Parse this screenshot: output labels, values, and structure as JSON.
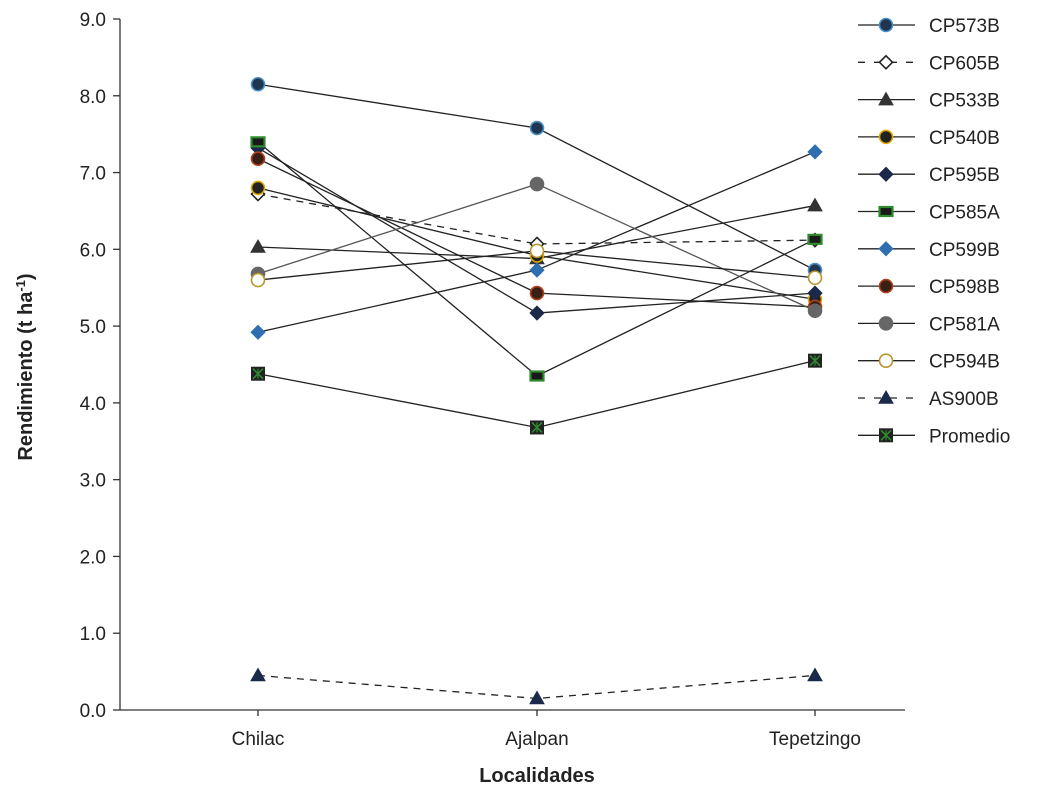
{
  "chart_data": {
    "type": "line",
    "xlabel": "Localidades",
    "ylabel": "Rendimiento (t ha",
    "ylabel_superscript": "-1",
    "ylabel_suffix": ")",
    "categories": [
      "Chilac",
      "Ajalpan",
      "Tepetzingo"
    ],
    "ylim": [
      0,
      9
    ],
    "yticks": [
      "0.0",
      "1.0",
      "2.0",
      "3.0",
      "4.0",
      "5.0",
      "6.0",
      "7.0",
      "8.0",
      "9.0"
    ],
    "grid": false,
    "legend_position": "right",
    "series": [
      {
        "name": "CP573B",
        "values": [
          8.15,
          7.58,
          5.73
        ],
        "marker": "circle",
        "fill": "#1f3550",
        "stroke": "#4a90c8",
        "line": "solid",
        "line_color": "#222222"
      },
      {
        "name": "CP605B",
        "values": [
          6.72,
          6.07,
          6.12
        ],
        "marker": "diamond",
        "fill": "#ffffff",
        "stroke": "#222222",
        "line": "dashed",
        "line_color": "#222222"
      },
      {
        "name": "CP533B",
        "values": [
          6.03,
          5.88,
          6.57
        ],
        "marker": "triangle",
        "fill": "#333333",
        "stroke": "#333333",
        "line": "solid",
        "line_color": "#222222"
      },
      {
        "name": "CP540B",
        "values": [
          6.8,
          5.92,
          5.35
        ],
        "marker": "circle",
        "fill": "#222222",
        "stroke": "#e0a800",
        "line": "solid",
        "line_color": "#222222"
      },
      {
        "name": "CP595B",
        "values": [
          7.32,
          5.17,
          5.43
        ],
        "marker": "diamond",
        "fill": "#1b2a4a",
        "stroke": "#1b2a4a",
        "line": "solid",
        "line_color": "#222222"
      },
      {
        "name": "CP585A",
        "values": [
          7.4,
          4.35,
          6.13
        ],
        "marker": "square",
        "fill": "#1a1a1a",
        "stroke": "#2e8b2e",
        "line": "solid",
        "line_color": "#222222"
      },
      {
        "name": "CP599B",
        "values": [
          4.92,
          5.73,
          7.27
        ],
        "marker": "diamond",
        "fill": "#2f6fb0",
        "stroke": "#2f6fb0",
        "line": "solid",
        "line_color": "#222222"
      },
      {
        "name": "CP598B",
        "values": [
          7.18,
          5.43,
          5.25
        ],
        "marker": "circle",
        "fill": "#3a1f14",
        "stroke": "#b04020",
        "line": "solid",
        "line_color": "#222222"
      },
      {
        "name": "CP581A",
        "values": [
          5.68,
          6.85,
          5.2
        ],
        "marker": "circle",
        "fill": "#666666",
        "stroke": "#666666",
        "line": "solid",
        "line_color": "#555555"
      },
      {
        "name": "CP594B",
        "values": [
          5.6,
          5.98,
          5.63
        ],
        "marker": "circle",
        "fill": "#ffffff",
        "stroke": "#b8962e",
        "line": "solid",
        "line_color": "#222222"
      },
      {
        "name": "AS900B",
        "values": [
          0.45,
          0.15,
          0.45
        ],
        "marker": "triangle",
        "fill": "#1b2a4a",
        "stroke": "#1b2a4a",
        "line": "dashed",
        "line_color": "#222222"
      },
      {
        "name": "Promedio",
        "values": [
          4.38,
          3.68,
          4.55
        ],
        "marker": "square-x",
        "fill": "#222222",
        "stroke": "#2e8b2e",
        "line": "solid",
        "line_color": "#222222"
      }
    ]
  }
}
